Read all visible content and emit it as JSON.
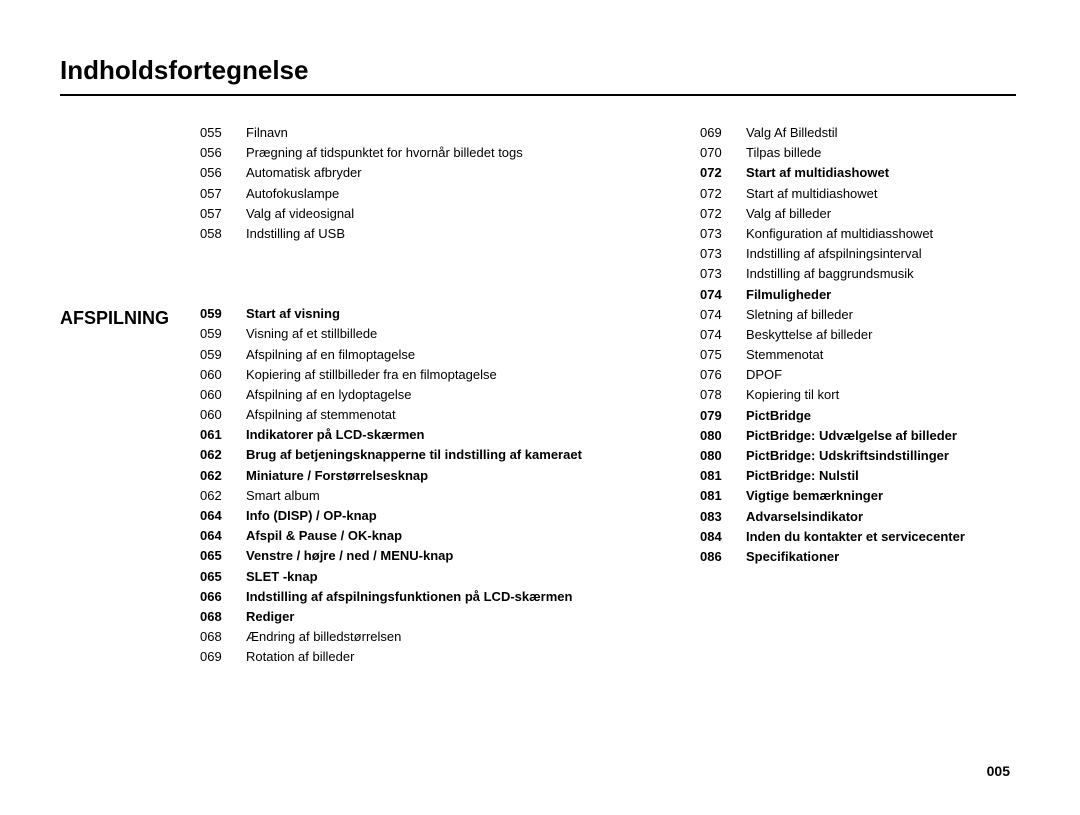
{
  "title": "Indholdsfortegnelse",
  "pageNumber": "005",
  "sectionLabel": "AFSPILNING",
  "leftTop": [
    {
      "pg": "055",
      "txt": "Filnavn",
      "bold": false
    },
    {
      "pg": "056",
      "txt": "Prægning af tidspunktet for hvornår billedet togs",
      "bold": false
    },
    {
      "pg": "056",
      "txt": "Automatisk afbryder",
      "bold": false
    },
    {
      "pg": "057",
      "txt": "Autofokuslampe",
      "bold": false
    },
    {
      "pg": "057",
      "txt": "Valg af videosignal",
      "bold": false
    },
    {
      "pg": "058",
      "txt": "Indstilling af USB",
      "bold": false
    }
  ],
  "leftMain": [
    {
      "pg": "059",
      "txt": "Start af visning",
      "bold": true
    },
    {
      "pg": "059",
      "txt": "Visning af et stillbillede",
      "bold": false
    },
    {
      "pg": "059",
      "txt": "Afspilning af en filmoptagelse",
      "bold": false
    },
    {
      "pg": "060",
      "txt": "Kopiering af stillbilleder fra en filmoptagelse",
      "bold": false
    },
    {
      "pg": "060",
      "txt": "Afspilning af en lydoptagelse",
      "bold": false
    },
    {
      "pg": "060",
      "txt": "Afspilning af stemmenotat",
      "bold": false
    },
    {
      "pg": "061",
      "txt": "Indikatorer på LCD-skærmen",
      "bold": true
    },
    {
      "pg": "062",
      "txt": "Brug af betjeningsknapperne til indstilling af kameraet",
      "bold": true
    },
    {
      "pg": "062",
      "txt": "Miniature / Forstørrelsesknap",
      "bold": true
    },
    {
      "pg": "062",
      "txt": "Smart album",
      "bold": false
    },
    {
      "pg": "064",
      "txt": "Info (DISP) / OP-knap",
      "bold": true
    },
    {
      "pg": "064",
      "txt": "Afspil & Pause / OK-knap",
      "bold": true
    },
    {
      "pg": "065",
      "txt": "Venstre / højre / ned / MENU-knap",
      "bold": true
    },
    {
      "pg": "065",
      "txt": "SLET -knap",
      "bold": true
    },
    {
      "pg": "066",
      "txt": "Indstilling af afspilningsfunktionen på LCD-skærmen",
      "bold": true
    },
    {
      "pg": "068",
      "txt": "Rediger",
      "bold": true
    },
    {
      "pg": "068",
      "txt": "Ændring af billedstørrelsen",
      "bold": false
    },
    {
      "pg": "069",
      "txt": "Rotation af billeder",
      "bold": false
    }
  ],
  "right": [
    {
      "pg": "069",
      "txt": "Valg Af Billedstil",
      "bold": false
    },
    {
      "pg": "070",
      "txt": "Tilpas billede",
      "bold": false
    },
    {
      "pg": "072",
      "txt": "Start af multidiashowet",
      "bold": true
    },
    {
      "pg": "072",
      "txt": "Start af multidiashowet",
      "bold": false
    },
    {
      "pg": "072",
      "txt": "Valg af billeder",
      "bold": false
    },
    {
      "pg": "073",
      "txt": "Konfiguration af multidiasshowet",
      "bold": false
    },
    {
      "pg": "073",
      "txt": "Indstilling af afspilningsinterval",
      "bold": false
    },
    {
      "pg": "073",
      "txt": "Indstilling af baggrundsmusik",
      "bold": false
    },
    {
      "pg": "074",
      "txt": "Filmuligheder",
      "bold": true
    },
    {
      "pg": "074",
      "txt": "Sletning af billeder",
      "bold": false
    },
    {
      "pg": "074",
      "txt": "Beskyttelse af billeder",
      "bold": false
    },
    {
      "pg": "075",
      "txt": "Stemmenotat",
      "bold": false
    },
    {
      "pg": "076",
      "txt": "DPOF",
      "bold": false
    },
    {
      "pg": "078",
      "txt": "Kopiering til kort",
      "bold": false
    },
    {
      "pg": "079",
      "txt": "PictBridge",
      "bold": true
    },
    {
      "pg": "080",
      "txt": "PictBridge: Udvælgelse af billeder",
      "bold": true
    },
    {
      "pg": "080",
      "txt": "PictBridge: Udskriftsindstillinger",
      "bold": true
    },
    {
      "pg": "081",
      "txt": "PictBridge: Nulstil",
      "bold": true
    },
    {
      "pg": "081",
      "txt": "Vigtige bemærkninger",
      "bold": true
    },
    {
      "pg": "083",
      "txt": "Advarselsindikator",
      "bold": true
    },
    {
      "pg": "084",
      "txt": "Inden du kontakter et servicecenter",
      "bold": true
    },
    {
      "pg": "086",
      "txt": "Specifikationer",
      "bold": true
    }
  ]
}
